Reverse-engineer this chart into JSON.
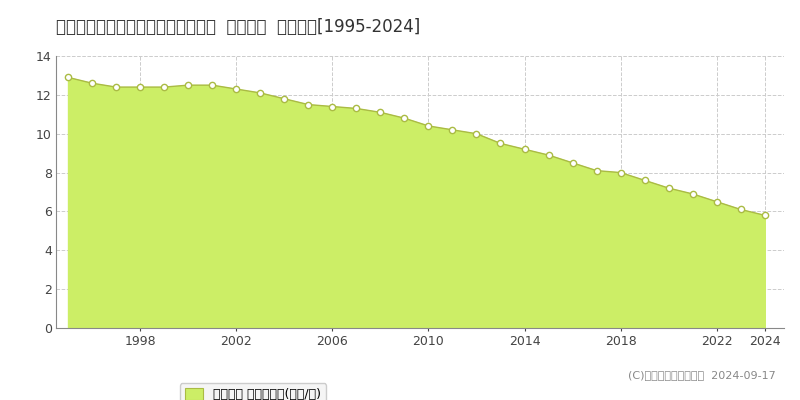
{
  "title": "広島県呉市見晴２丁目１４６番２外  地価公示  地価推移[1995-2024]",
  "years": [
    1995,
    1996,
    1997,
    1998,
    1999,
    2000,
    2001,
    2002,
    2003,
    2004,
    2005,
    2006,
    2007,
    2008,
    2009,
    2010,
    2011,
    2012,
    2013,
    2014,
    2015,
    2016,
    2017,
    2018,
    2019,
    2020,
    2021,
    2022,
    2023,
    2024
  ],
  "values": [
    12.9,
    12.6,
    12.4,
    12.4,
    12.4,
    12.5,
    12.5,
    12.3,
    12.1,
    11.8,
    11.5,
    11.4,
    11.3,
    11.1,
    10.8,
    10.4,
    10.2,
    10.0,
    9.5,
    9.2,
    8.9,
    8.5,
    8.1,
    8.0,
    7.6,
    7.2,
    6.9,
    6.5,
    6.1,
    5.8
  ],
  "fill_color": "#ccee66",
  "line_color": "#aabb44",
  "marker_facecolor": "#ffffff",
  "marker_edgecolor": "#aabb44",
  "background_color": "#ffffff",
  "plot_bg_color": "#ffffff",
  "grid_color": "#cccccc",
  "ylim": [
    0,
    14
  ],
  "yticks": [
    0,
    2,
    4,
    6,
    8,
    10,
    12,
    14
  ],
  "xticks": [
    1998,
    2002,
    2006,
    2010,
    2014,
    2018,
    2022,
    2024
  ],
  "xlim_left": 1994.5,
  "xlim_right": 2024.8,
  "legend_label": "地価公示 平均坪単価(万円/坪)",
  "copyright_text": "(C)土地価格ドットコム  2024-09-17",
  "title_fontsize": 12,
  "axis_fontsize": 9,
  "legend_fontsize": 9,
  "copyright_fontsize": 8
}
